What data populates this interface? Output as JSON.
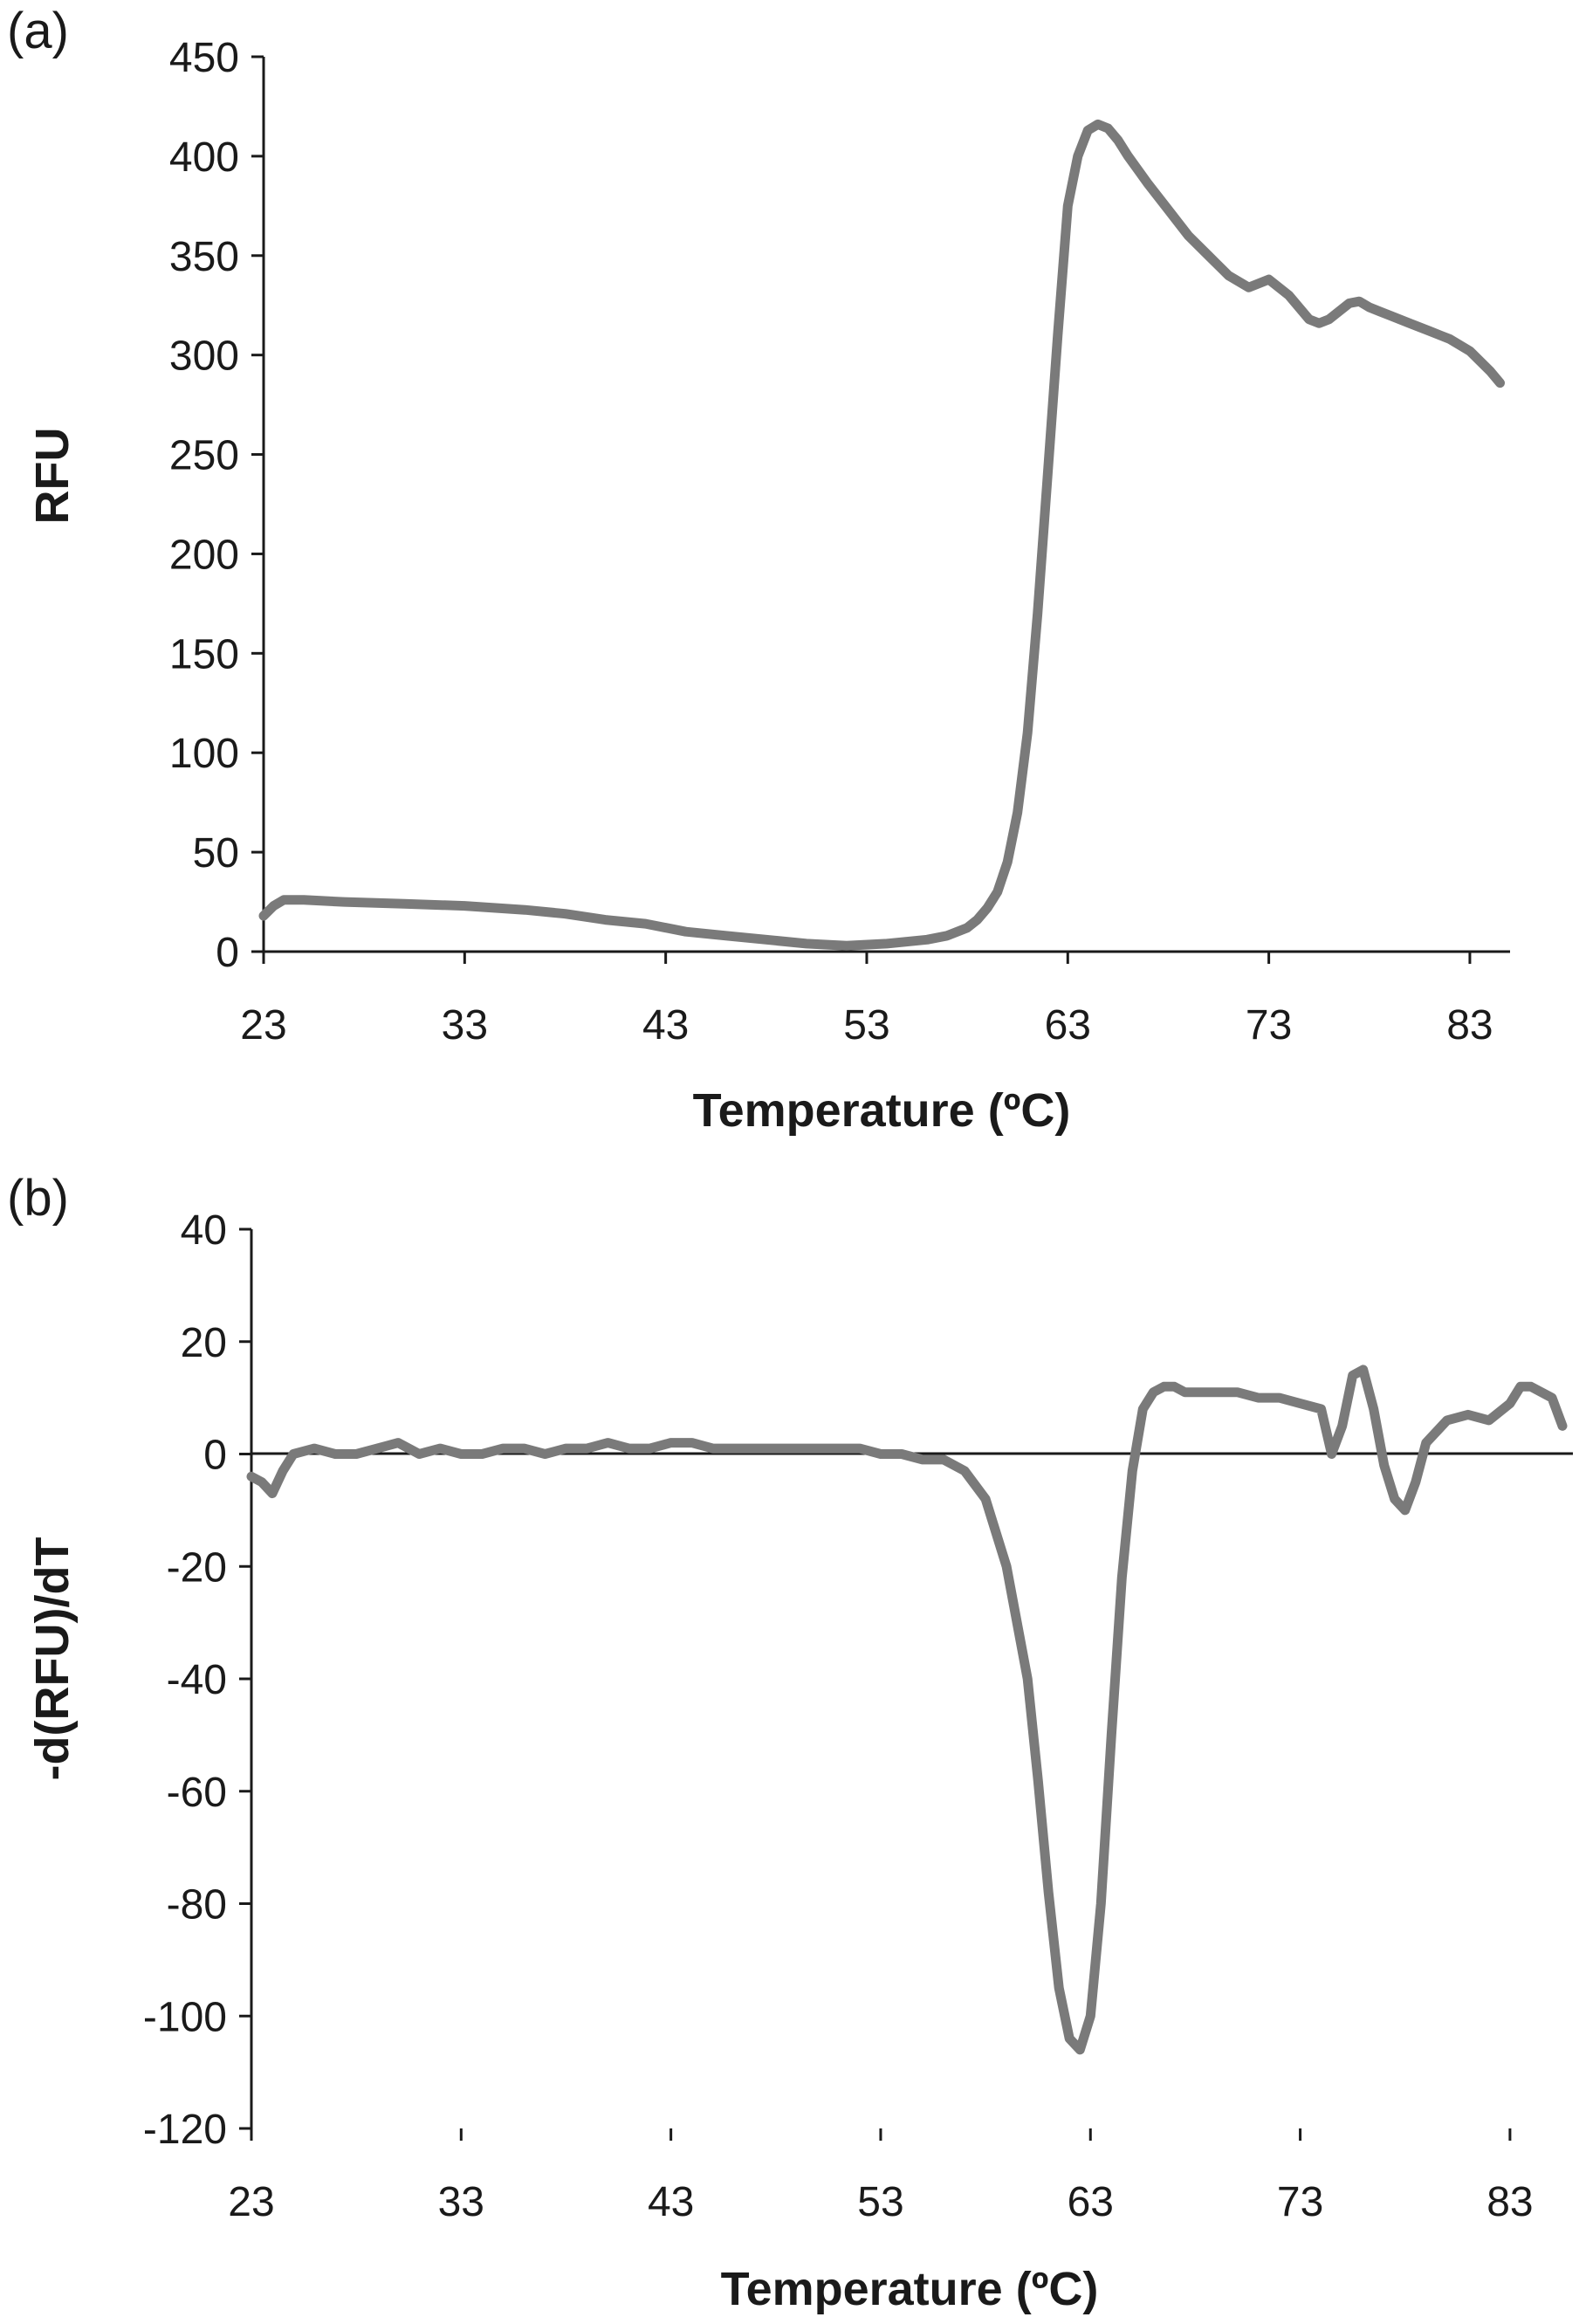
{
  "colors": {
    "series": "#7a7a7a",
    "axis": "#1a1a1a"
  },
  "chart_data": [
    {
      "type": "line",
      "panel_label": "(a)",
      "xlabel": "Temperature (ºC)",
      "ylabel": "RFU",
      "xlim": [
        23,
        85
      ],
      "ylim": [
        0,
        450
      ],
      "x_ticks": [
        23,
        33,
        43,
        53,
        63,
        73,
        83
      ],
      "y_ticks": [
        0,
        50,
        100,
        150,
        200,
        250,
        300,
        350,
        400,
        450
      ],
      "grid": false,
      "zero_line": false,
      "series": [
        {
          "x": [
            23,
            23.5,
            24,
            25,
            27,
            30,
            33,
            36,
            38,
            40,
            42,
            44,
            46,
            48,
            50,
            52,
            54,
            56,
            57,
            58,
            58.5,
            59,
            59.5,
            60,
            60.5,
            61,
            61.5,
            62,
            62.5,
            63,
            63.5,
            64,
            64.5,
            65,
            65.5,
            66,
            66.5,
            67,
            68,
            69,
            70,
            71,
            72,
            73,
            74,
            75,
            75.5,
            76,
            76.5,
            77,
            77.5,
            78,
            78.5,
            79,
            80,
            81,
            82,
            83,
            84,
            84.5
          ],
          "y": [
            18,
            23,
            26,
            26,
            25,
            24,
            23,
            21,
            19,
            16,
            14,
            10,
            8,
            6,
            4,
            3,
            4,
            6,
            8,
            12,
            16,
            22,
            30,
            45,
            70,
            110,
            170,
            240,
            310,
            375,
            400,
            413,
            416,
            414,
            408,
            400,
            393,
            386,
            373,
            360,
            350,
            340,
            334,
            338,
            330,
            318,
            316,
            318,
            322,
            326,
            327,
            324,
            322,
            320,
            316,
            312,
            308,
            302,
            292,
            286
          ]
        }
      ]
    },
    {
      "type": "line",
      "panel_label": "(b)",
      "xlabel": "Temperature (ºC)",
      "ylabel": "-d(RFU)/dT",
      "xlim": [
        23,
        86
      ],
      "ylim": [
        -120,
        40
      ],
      "x_ticks": [
        23,
        33,
        43,
        53,
        63,
        73,
        83
      ],
      "y_ticks": [
        40,
        20,
        0,
        -20,
        -40,
        -60,
        -80,
        -100,
        -120
      ],
      "grid": false,
      "zero_line": true,
      "series": [
        {
          "x": [
            23,
            23.5,
            24,
            24.5,
            25,
            26,
            27,
            28,
            29,
            30,
            31,
            32,
            33,
            34,
            35,
            36,
            37,
            38,
            39,
            40,
            41,
            42,
            43,
            44,
            45,
            46,
            47,
            48,
            49,
            50,
            51,
            52,
            53,
            54,
            55,
            56,
            57,
            58,
            59,
            60,
            60.5,
            61,
            61.5,
            62,
            62.5,
            63,
            63.5,
            64,
            64.5,
            65,
            65.5,
            66,
            66.5,
            67,
            67.5,
            68,
            69,
            70,
            71,
            72,
            73,
            74,
            74.5,
            75,
            75.5,
            76,
            76.5,
            77,
            77.5,
            78,
            78.5,
            79,
            79.5,
            80,
            81,
            82,
            83,
            83.5,
            84,
            85,
            85.5
          ],
          "y": [
            -4,
            -5,
            -7,
            -3,
            0,
            1,
            0,
            0,
            1,
            2,
            0,
            1,
            0,
            0,
            1,
            1,
            0,
            1,
            1,
            2,
            1,
            1,
            2,
            2,
            1,
            1,
            1,
            1,
            1,
            1,
            1,
            1,
            0,
            0,
            -1,
            -1,
            -3,
            -8,
            -20,
            -40,
            -58,
            -78,
            -95,
            -104,
            -106,
            -100,
            -80,
            -50,
            -22,
            -3,
            8,
            11,
            12,
            12,
            11,
            11,
            11,
            11,
            10,
            10,
            9,
            8,
            0,
            5,
            14,
            15,
            8,
            -2,
            -8,
            -10,
            -5,
            2,
            4,
            6,
            7,
            6,
            9,
            12,
            12,
            10,
            5
          ]
        }
      ]
    }
  ]
}
